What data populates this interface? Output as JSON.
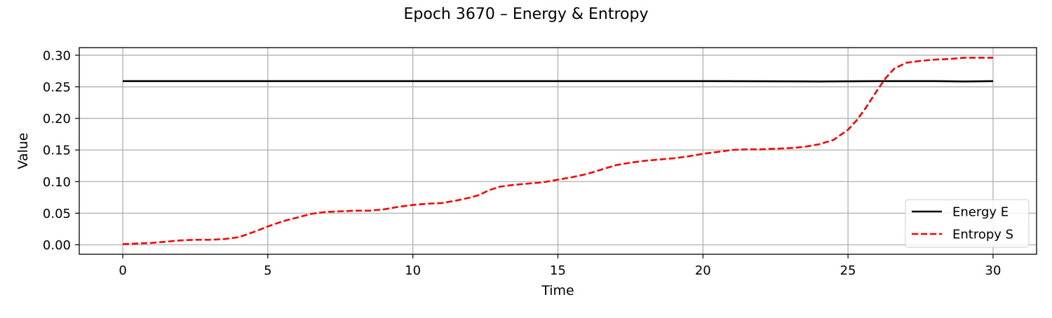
{
  "chart_data": {
    "type": "line",
    "title": "Epoch 3670 – Energy & Entropy",
    "xlabel": "Time",
    "ylabel": "Value",
    "xlim": [
      -1.5,
      31.5
    ],
    "ylim": [
      -0.015,
      0.312
    ],
    "xticks": [
      0,
      5,
      10,
      15,
      20,
      25,
      30
    ],
    "xtick_labels": [
      "0",
      "5",
      "10",
      "15",
      "20",
      "25",
      "30"
    ],
    "yticks": [
      0.0,
      0.05,
      0.1,
      0.15,
      0.2,
      0.25,
      0.3
    ],
    "ytick_labels": [
      "0.00",
      "0.05",
      "0.10",
      "0.15",
      "0.20",
      "0.25",
      "0.30"
    ],
    "grid": true,
    "legend_position": "lower-right",
    "series": [
      {
        "name": "Energy E",
        "color": "#000000",
        "style": "solid",
        "x": [
          0,
          5,
          10,
          15,
          20,
          24,
          26,
          28,
          29,
          30
        ],
        "y": [
          0.259,
          0.259,
          0.259,
          0.259,
          0.259,
          0.2585,
          0.259,
          0.259,
          0.2585,
          0.259
        ]
      },
      {
        "name": "Entropy S",
        "color": "#ff0000",
        "style": "dashed",
        "x": [
          0,
          0.5,
          1,
          1.5,
          2,
          2.5,
          3,
          3.5,
          4,
          4.5,
          5,
          5.5,
          6,
          6.5,
          7,
          7.5,
          8,
          8.5,
          9,
          9.5,
          10,
          10.5,
          11,
          11.5,
          12,
          12.3,
          12.6,
          13,
          13.5,
          14,
          14.5,
          15,
          15.5,
          16,
          16.5,
          17,
          17.5,
          18,
          18.5,
          19,
          19.5,
          20,
          20.5,
          21,
          21.5,
          22,
          22.5,
          23,
          23.5,
          24,
          24.5,
          25,
          25.3,
          25.6,
          26,
          26.3,
          26.6,
          27,
          27.5,
          28,
          28.5,
          29,
          29.5,
          30
        ],
        "y": [
          0.001,
          0.002,
          0.003,
          0.005,
          0.007,
          0.008,
          0.008,
          0.009,
          0.012,
          0.02,
          0.029,
          0.037,
          0.043,
          0.049,
          0.052,
          0.053,
          0.054,
          0.054,
          0.056,
          0.06,
          0.063,
          0.065,
          0.066,
          0.07,
          0.075,
          0.079,
          0.086,
          0.092,
          0.095,
          0.097,
          0.099,
          0.103,
          0.107,
          0.112,
          0.119,
          0.126,
          0.13,
          0.133,
          0.135,
          0.137,
          0.14,
          0.144,
          0.147,
          0.15,
          0.151,
          0.151,
          0.152,
          0.153,
          0.155,
          0.159,
          0.166,
          0.182,
          0.197,
          0.216,
          0.244,
          0.264,
          0.279,
          0.288,
          0.291,
          0.293,
          0.294,
          0.296,
          0.296,
          0.296
        ]
      }
    ]
  }
}
